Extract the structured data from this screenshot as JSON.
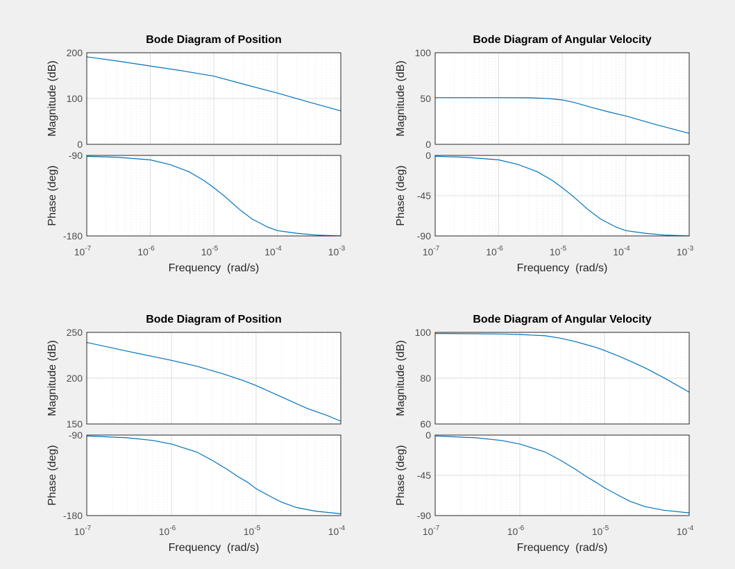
{
  "chart_data": [
    {
      "type": "line",
      "title": "Bode Diagram of Position",
      "xlabel": "Frequency  (rad/s)",
      "xscale": "log",
      "xlim": [
        1e-07,
        0.001
      ],
      "x_ticks": [
        "-7",
        "-6",
        "-5",
        "-4",
        "-3"
      ],
      "magnitude": {
        "ylabel": "Magnitude (dB)",
        "ylim": [
          0,
          200
        ],
        "y_ticks": [
          0,
          100,
          200
        ],
        "x": [
          1e-07,
          3e-07,
          1e-06,
          3e-06,
          1e-05,
          3e-05,
          0.0001,
          0.0003,
          0.001
        ],
        "y": [
          191,
          182,
          171,
          161,
          149,
          131,
          112,
          93,
          73
        ]
      },
      "phase": {
        "ylabel": "Phase (deg)",
        "ylim": [
          -180,
          -90
        ],
        "y_ticks": [
          -180,
          -90
        ],
        "x": [
          1e-07,
          3e-07,
          1e-06,
          2e-06,
          4e-06,
          7e-06,
          1e-05,
          1.5e-05,
          2.5e-05,
          4e-05,
          7e-05,
          0.0001,
          0.0002,
          0.0004,
          0.001
        ],
        "y": [
          -91,
          -92,
          -95,
          -100,
          -108,
          -118,
          -126,
          -136,
          -150,
          -161,
          -170,
          -174,
          -177,
          -179,
          -180
        ]
      },
      "grid": true
    },
    {
      "type": "line",
      "title": "Bode Diagram of Angular Velocity",
      "xlabel": "Frequency  (rad/s)",
      "xscale": "log",
      "xlim": [
        1e-07,
        0.001
      ],
      "x_ticks": [
        "-7",
        "-6",
        "-5",
        "-4",
        "-3"
      ],
      "magnitude": {
        "ylabel": "Magnitude (dB)",
        "ylim": [
          0,
          100
        ],
        "y_ticks": [
          0,
          50,
          100
        ],
        "x": [
          1e-07,
          1e-06,
          3e-06,
          6e-06,
          1e-05,
          1.5e-05,
          2e-05,
          3e-05,
          5e-05,
          0.0001,
          0.0003,
          0.001
        ],
        "y": [
          51,
          51,
          50.8,
          50,
          48.5,
          46,
          43.5,
          40,
          36,
          31,
          21.5,
          12
        ]
      },
      "phase": {
        "ylabel": "Phase (deg)",
        "ylim": [
          -90,
          0
        ],
        "y_ticks": [
          -90,
          -45,
          0
        ],
        "x": [
          1e-07,
          3e-07,
          1e-06,
          2e-06,
          4e-06,
          7e-06,
          1e-05,
          1.5e-05,
          2.5e-05,
          4e-05,
          7e-05,
          0.0001,
          0.0002,
          0.0004,
          0.001
        ],
        "y": [
          -1,
          -2,
          -5,
          -10,
          -18,
          -28,
          -36,
          -46,
          -60,
          -71,
          -80,
          -84,
          -87,
          -89,
          -90
        ]
      },
      "grid": true
    },
    {
      "type": "line",
      "title": "Bode Diagram of Position",
      "xlabel": "Frequency  (rad/s)",
      "xscale": "log",
      "xlim": [
        1e-07,
        0.0001
      ],
      "x_ticks": [
        "-7",
        "-6",
        "-5",
        "-4"
      ],
      "magnitude": {
        "ylabel": "Magnitude (dB)",
        "ylim": [
          150,
          250
        ],
        "y_ticks": [
          150,
          200,
          250
        ],
        "x": [
          1e-07,
          3e-07,
          1e-06,
          2e-06,
          4e-06,
          7e-06,
          1e-05,
          2e-05,
          4e-05,
          7e-05,
          0.0001
        ],
        "y": [
          239,
          229.5,
          219.5,
          213,
          205,
          197.5,
          192,
          179.5,
          167,
          159,
          153
        ]
      },
      "phase": {
        "ylabel": "Phase (deg)",
        "ylim": [
          -180,
          -90
        ],
        "y_ticks": [
          -180,
          -90
        ],
        "x": [
          1e-07,
          3e-07,
          6e-07,
          1e-06,
          2e-06,
          3e-06,
          4.5e-06,
          6e-06,
          8e-06,
          1e-05,
          1.5e-05,
          2e-05,
          3e-05,
          5e-05,
          0.0001
        ],
        "y": [
          -91,
          -93,
          -96,
          -100,
          -109,
          -118,
          -128,
          -136,
          -143,
          -150,
          -159,
          -165,
          -171,
          -175,
          -178
        ]
      },
      "grid": true
    },
    {
      "type": "line",
      "title": "Bode Diagram of Angular Velocity",
      "xlabel": "Frequency  (rad/s)",
      "xscale": "log",
      "xlim": [
        1e-07,
        0.0001
      ],
      "x_ticks": [
        "-7",
        "-6",
        "-5",
        "-4"
      ],
      "magnitude": {
        "ylabel": "Magnitude (dB)",
        "ylim": [
          60,
          100
        ],
        "y_ticks": [
          60,
          80,
          100
        ],
        "x": [
          1e-07,
          3e-07,
          6e-07,
          1e-06,
          2e-06,
          3e-06,
          4.5e-06,
          6e-06,
          8e-06,
          1e-05,
          1.5e-05,
          2e-05,
          3e-05,
          5e-05,
          0.0001
        ],
        "y": [
          99.5,
          99.4,
          99.3,
          99.1,
          98.5,
          97.5,
          96,
          94.7,
          93.4,
          92.1,
          89.5,
          87.5,
          84.5,
          80.2,
          73.9
        ]
      },
      "phase": {
        "ylabel": "Phase (deg)",
        "ylim": [
          -90,
          0
        ],
        "y_ticks": [
          -90,
          -45,
          0
        ],
        "x": [
          1e-07,
          3e-07,
          6e-07,
          1e-06,
          2e-06,
          3e-06,
          4.5e-06,
          6e-06,
          8e-06,
          1e-05,
          1.5e-05,
          2e-05,
          3e-05,
          5e-05,
          0.0001
        ],
        "y": [
          -1,
          -3,
          -6,
          -10,
          -19,
          -28,
          -38,
          -46,
          -53,
          -59,
          -68,
          -74,
          -80,
          -84,
          -87
        ]
      },
      "grid": true
    }
  ]
}
